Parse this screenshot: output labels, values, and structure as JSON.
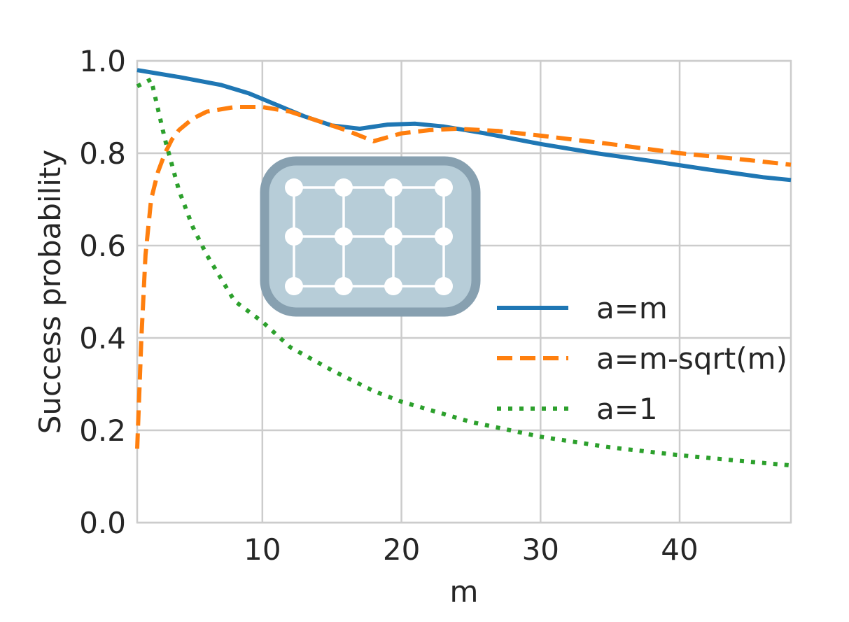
{
  "chart_data": {
    "type": "line",
    "xlabel": "m",
    "ylabel": "Success probability",
    "xlim": [
      1,
      48
    ],
    "ylim": [
      0.0,
      1.0
    ],
    "xticks": [
      10,
      20,
      30,
      40
    ],
    "yticks": [
      0.0,
      0.2,
      0.4,
      0.6,
      0.8,
      1.0
    ],
    "xtick_labels": [
      "10",
      "20",
      "30",
      "40"
    ],
    "ytick_labels": [
      "0.0",
      "0.2",
      "0.4",
      "0.6",
      "0.8",
      "1.0"
    ],
    "grid": true,
    "legend_position": "center-right",
    "series": [
      {
        "name": "a=m",
        "color": "#1f77b4",
        "style": "solid",
        "x": [
          1,
          2,
          4,
          7,
          9,
          11,
          13,
          15,
          17,
          19,
          21,
          23,
          26,
          30,
          34,
          38,
          42,
          46,
          48
        ],
        "y": [
          0.98,
          0.975,
          0.965,
          0.948,
          0.93,
          0.905,
          0.88,
          0.86,
          0.853,
          0.862,
          0.864,
          0.858,
          0.843,
          0.82,
          0.8,
          0.783,
          0.765,
          0.748,
          0.742
        ]
      },
      {
        "name": "a=m-sqrt(m)",
        "color": "#ff7f0e",
        "style": "dashed",
        "x": [
          1,
          1.3,
          1.6,
          2,
          2.5,
          3,
          3.5,
          4,
          5,
          6,
          8,
          10,
          12,
          14,
          16,
          18,
          20,
          22,
          24,
          27,
          30,
          35,
          40,
          45,
          48
        ],
        "y": [
          0.16,
          0.4,
          0.58,
          0.7,
          0.76,
          0.8,
          0.83,
          0.85,
          0.875,
          0.89,
          0.9,
          0.9,
          0.89,
          0.87,
          0.85,
          0.826,
          0.843,
          0.85,
          0.853,
          0.848,
          0.838,
          0.82,
          0.8,
          0.785,
          0.775
        ]
      },
      {
        "name": "a=1",
        "color": "#2ca02c",
        "style": "dotted",
        "x": [
          1,
          2,
          3,
          4,
          5,
          6,
          7,
          8,
          10,
          12,
          15,
          18,
          20,
          25,
          30,
          35,
          40,
          45,
          48
        ],
        "y": [
          0.945,
          0.96,
          0.83,
          0.72,
          0.64,
          0.58,
          0.53,
          0.48,
          0.435,
          0.38,
          0.33,
          0.285,
          0.262,
          0.218,
          0.186,
          0.163,
          0.146,
          0.132,
          0.124
        ]
      }
    ]
  }
}
